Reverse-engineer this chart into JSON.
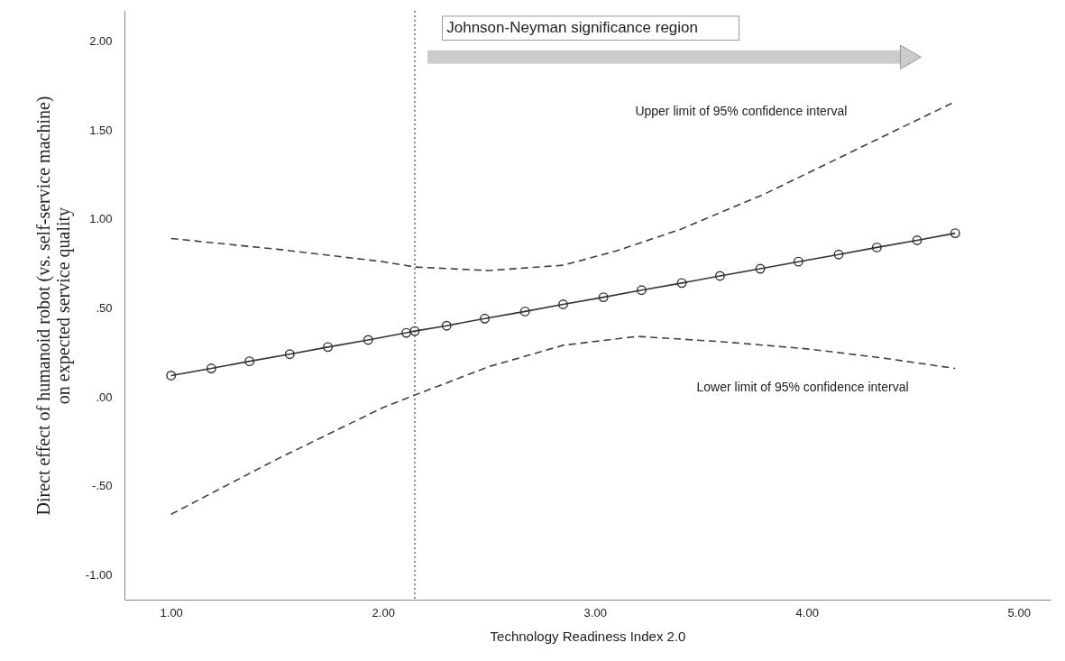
{
  "chart_data": {
    "type": "line",
    "xlabel": "Technology Readiness Index 2.0",
    "ylabel": "Direct effect of humanoid robot (vs. self-service machine)\non expected service quality",
    "xlim": [
      0.78,
      5.15
    ],
    "ylim": [
      -1.14,
      2.17
    ],
    "xticks": [
      {
        "value": 1,
        "label": "1.00"
      },
      {
        "value": 2,
        "label": "2.00"
      },
      {
        "value": 3,
        "label": "3.00"
      },
      {
        "value": 4,
        "label": "4.00"
      },
      {
        "value": 5,
        "label": "5.00"
      }
    ],
    "yticks": [
      {
        "value": -1,
        "label": "-1.00"
      },
      {
        "value": -0.5,
        "label": "-.50"
      },
      {
        "value": 0,
        "label": ".00"
      },
      {
        "value": 0.5,
        "label": ".50"
      },
      {
        "value": 1,
        "label": "1.00"
      },
      {
        "value": 1.5,
        "label": "1.50"
      },
      {
        "value": 2,
        "label": "2.00"
      }
    ],
    "series": [
      {
        "color": "#333333",
        "marker": "circle",
        "line_style": "solid",
        "x": [
          1.0,
          1.19,
          1.37,
          1.56,
          1.74,
          1.93,
          2.11,
          2.15,
          2.3,
          2.48,
          2.67,
          2.85,
          3.04,
          3.22,
          3.41,
          3.59,
          3.78,
          3.96,
          4.15,
          4.33,
          4.52,
          4.7
        ],
        "values": [
          0.12,
          0.16,
          0.2,
          0.24,
          0.28,
          0.32,
          0.36,
          0.37,
          0.4,
          0.44,
          0.48,
          0.52,
          0.56,
          0.6,
          0.64,
          0.68,
          0.72,
          0.76,
          0.8,
          0.84,
          0.88,
          0.92
        ]
      },
      {
        "name": "Upper limit of 95% confidence interval",
        "color": "#404040",
        "marker": "none",
        "line_style": "dashed",
        "x": [
          1.0,
          1.5,
          2.0,
          2.15,
          2.5,
          2.85,
          3.1,
          3.4,
          3.8,
          4.25,
          4.7
        ],
        "values": [
          0.89,
          0.83,
          0.76,
          0.73,
          0.71,
          0.74,
          0.82,
          0.94,
          1.14,
          1.4,
          1.66
        ]
      },
      {
        "name": "Lower limit of 95% confidence interval",
        "color": "#404040",
        "marker": "none",
        "line_style": "dashed",
        "x": [
          1.0,
          1.5,
          2.0,
          2.15,
          2.5,
          2.85,
          3.2,
          3.6,
          4.0,
          4.35,
          4.7
        ],
        "values": [
          -0.66,
          -0.35,
          -0.06,
          0.01,
          0.17,
          0.29,
          0.34,
          0.31,
          0.27,
          0.22,
          0.16
        ]
      }
    ],
    "ref_lines": [
      {
        "axis": "x",
        "value": 2.15,
        "color": "#555555",
        "line_style": "dotted"
      }
    ],
    "annotations": [
      "Johnson-Neyman significance region"
    ]
  }
}
